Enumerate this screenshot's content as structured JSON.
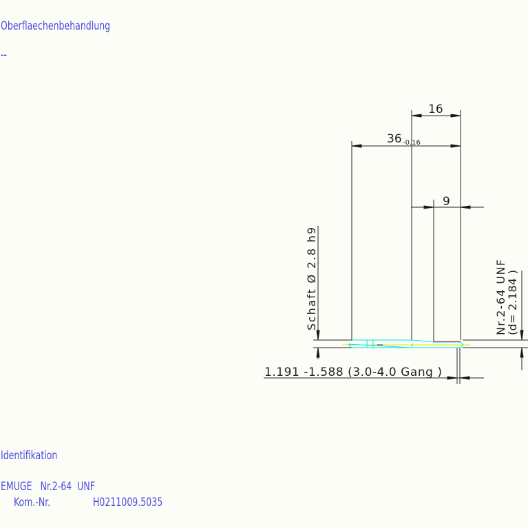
{
  "header": {
    "surface_label": "Oberflaechenbehandlung",
    "surface_value": "--"
  },
  "drawing": {
    "dim_thread_length": "16",
    "dim_total_length": "36",
    "dim_total_tolerance": "-0.16",
    "dim_chamfer": "9",
    "shank_label": "Schaft  Ø 2.8  h9",
    "thread_label": "Nr.2-64  UNF",
    "thread_diameter": "(d= 2.184  )",
    "core_hole": "1.191  -1.588 (3.0-4.0  Gang   )",
    "colors": {
      "outline": "#00e5e5",
      "centerline": "#e8e800",
      "thread": "#d02020",
      "dimension": "#222222",
      "text": "#4a4ae0"
    }
  },
  "footer": {
    "ident_label": "Identifikation",
    "product_line": "EMUGE   Nr.2-64  UNF",
    "kom_label": "Kom.-Nr.",
    "kom_value": "H0211009.5035"
  }
}
